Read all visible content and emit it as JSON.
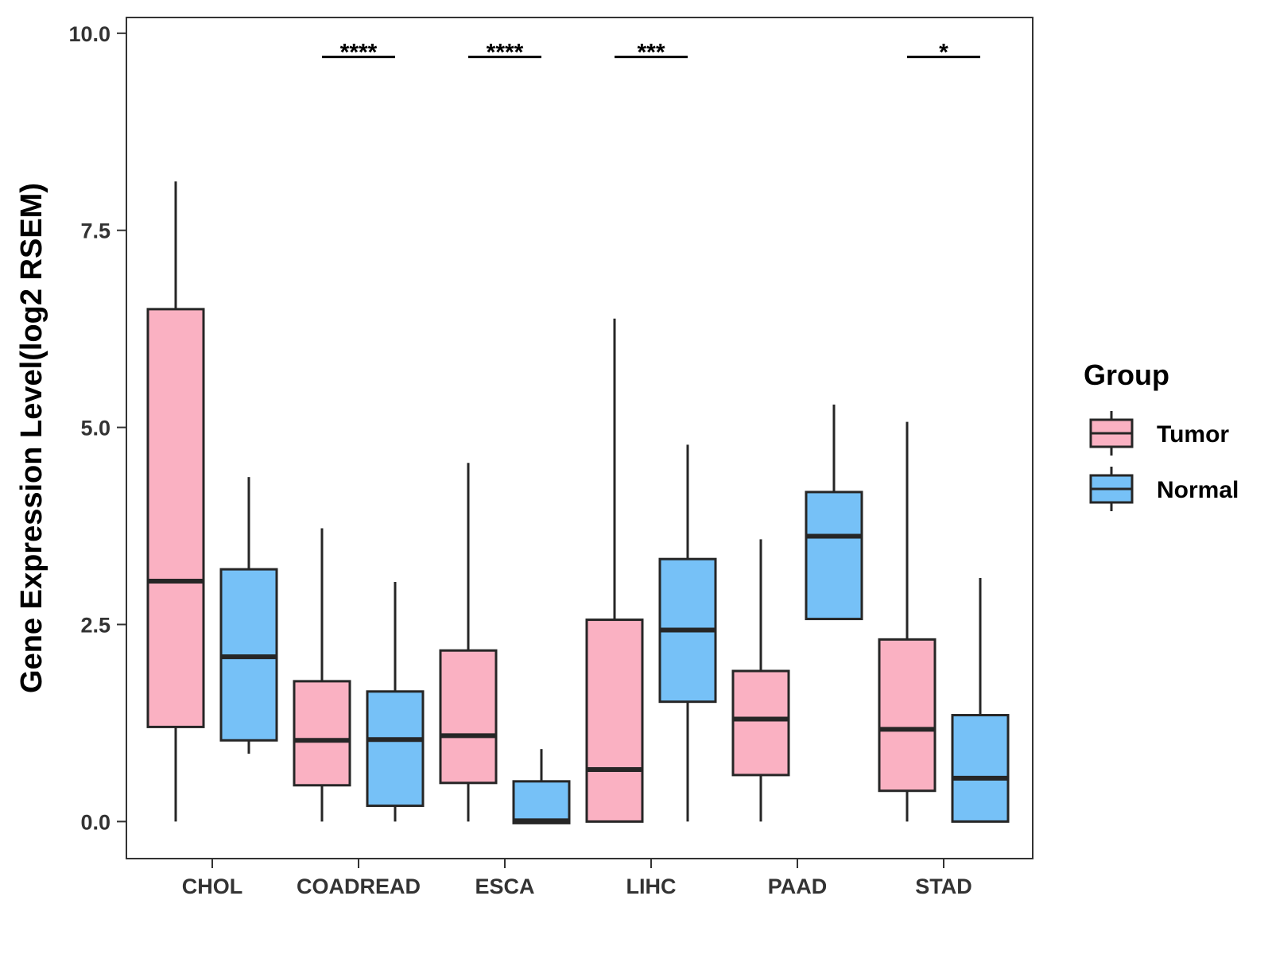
{
  "chart_data": {
    "type": "boxplot",
    "title": "",
    "xlabel": "",
    "ylabel": "Gene Expression Level(log2 RSEM)",
    "ylim": [
      -0.47,
      10.2
    ],
    "yticks": [
      0.0,
      2.5,
      5.0,
      7.5,
      10.0
    ],
    "ytick_labels": [
      "0.0",
      "2.5",
      "5.0",
      "7.5",
      "10.0"
    ],
    "categories": [
      "CHOL",
      "COADREAD",
      "ESCA",
      "LIHC",
      "PAAD",
      "STAD"
    ],
    "series": [
      {
        "name": "Tumor",
        "color": "#FAB1C2",
        "boxes": [
          {
            "min": 0.0,
            "q1": 1.2,
            "median": 3.05,
            "q3": 6.5,
            "max": 8.12
          },
          {
            "min": 0.0,
            "q1": 0.46,
            "median": 1.03,
            "q3": 1.78,
            "max": 3.72
          },
          {
            "min": 0.0,
            "q1": 0.49,
            "median": 1.09,
            "q3": 2.17,
            "max": 4.55
          },
          {
            "min": 0.0,
            "q1": 0.0,
            "median": 0.66,
            "q3": 2.56,
            "max": 6.38
          },
          {
            "min": 0.0,
            "q1": 0.59,
            "median": 1.3,
            "q3": 1.91,
            "max": 3.58
          },
          {
            "min": 0.0,
            "q1": 0.39,
            "median": 1.17,
            "q3": 2.31,
            "max": 5.07
          }
        ]
      },
      {
        "name": "Normal",
        "color": "#76C1F7",
        "boxes": [
          {
            "min": 0.86,
            "q1": 1.03,
            "median": 2.09,
            "q3": 3.2,
            "max": 4.37
          },
          {
            "min": 0.0,
            "q1": 0.2,
            "median": 1.04,
            "q3": 1.65,
            "max": 3.04
          },
          {
            "min": -0.02,
            "q1": -0.02,
            "median": 0.01,
            "q3": 0.51,
            "max": 0.92
          },
          {
            "min": 0.0,
            "q1": 1.52,
            "median": 2.43,
            "q3": 3.33,
            "max": 4.78
          },
          {
            "min": 2.57,
            "q1": 2.57,
            "median": 3.62,
            "q3": 4.18,
            "max": 5.29
          },
          {
            "min": 0.0,
            "q1": 0.0,
            "median": 0.55,
            "q3": 1.35,
            "max": 3.09
          }
        ]
      }
    ],
    "significance": [
      {
        "category": "COADREAD",
        "label": "****"
      },
      {
        "category": "ESCA",
        "label": "****"
      },
      {
        "category": "LIHC",
        "label": "***"
      },
      {
        "category": "STAD",
        "label": "*"
      }
    ],
    "significance_y": 9.7,
    "legend": {
      "title": "Group",
      "position": "right",
      "entries": [
        "Tumor",
        "Normal"
      ]
    },
    "grid": false
  }
}
